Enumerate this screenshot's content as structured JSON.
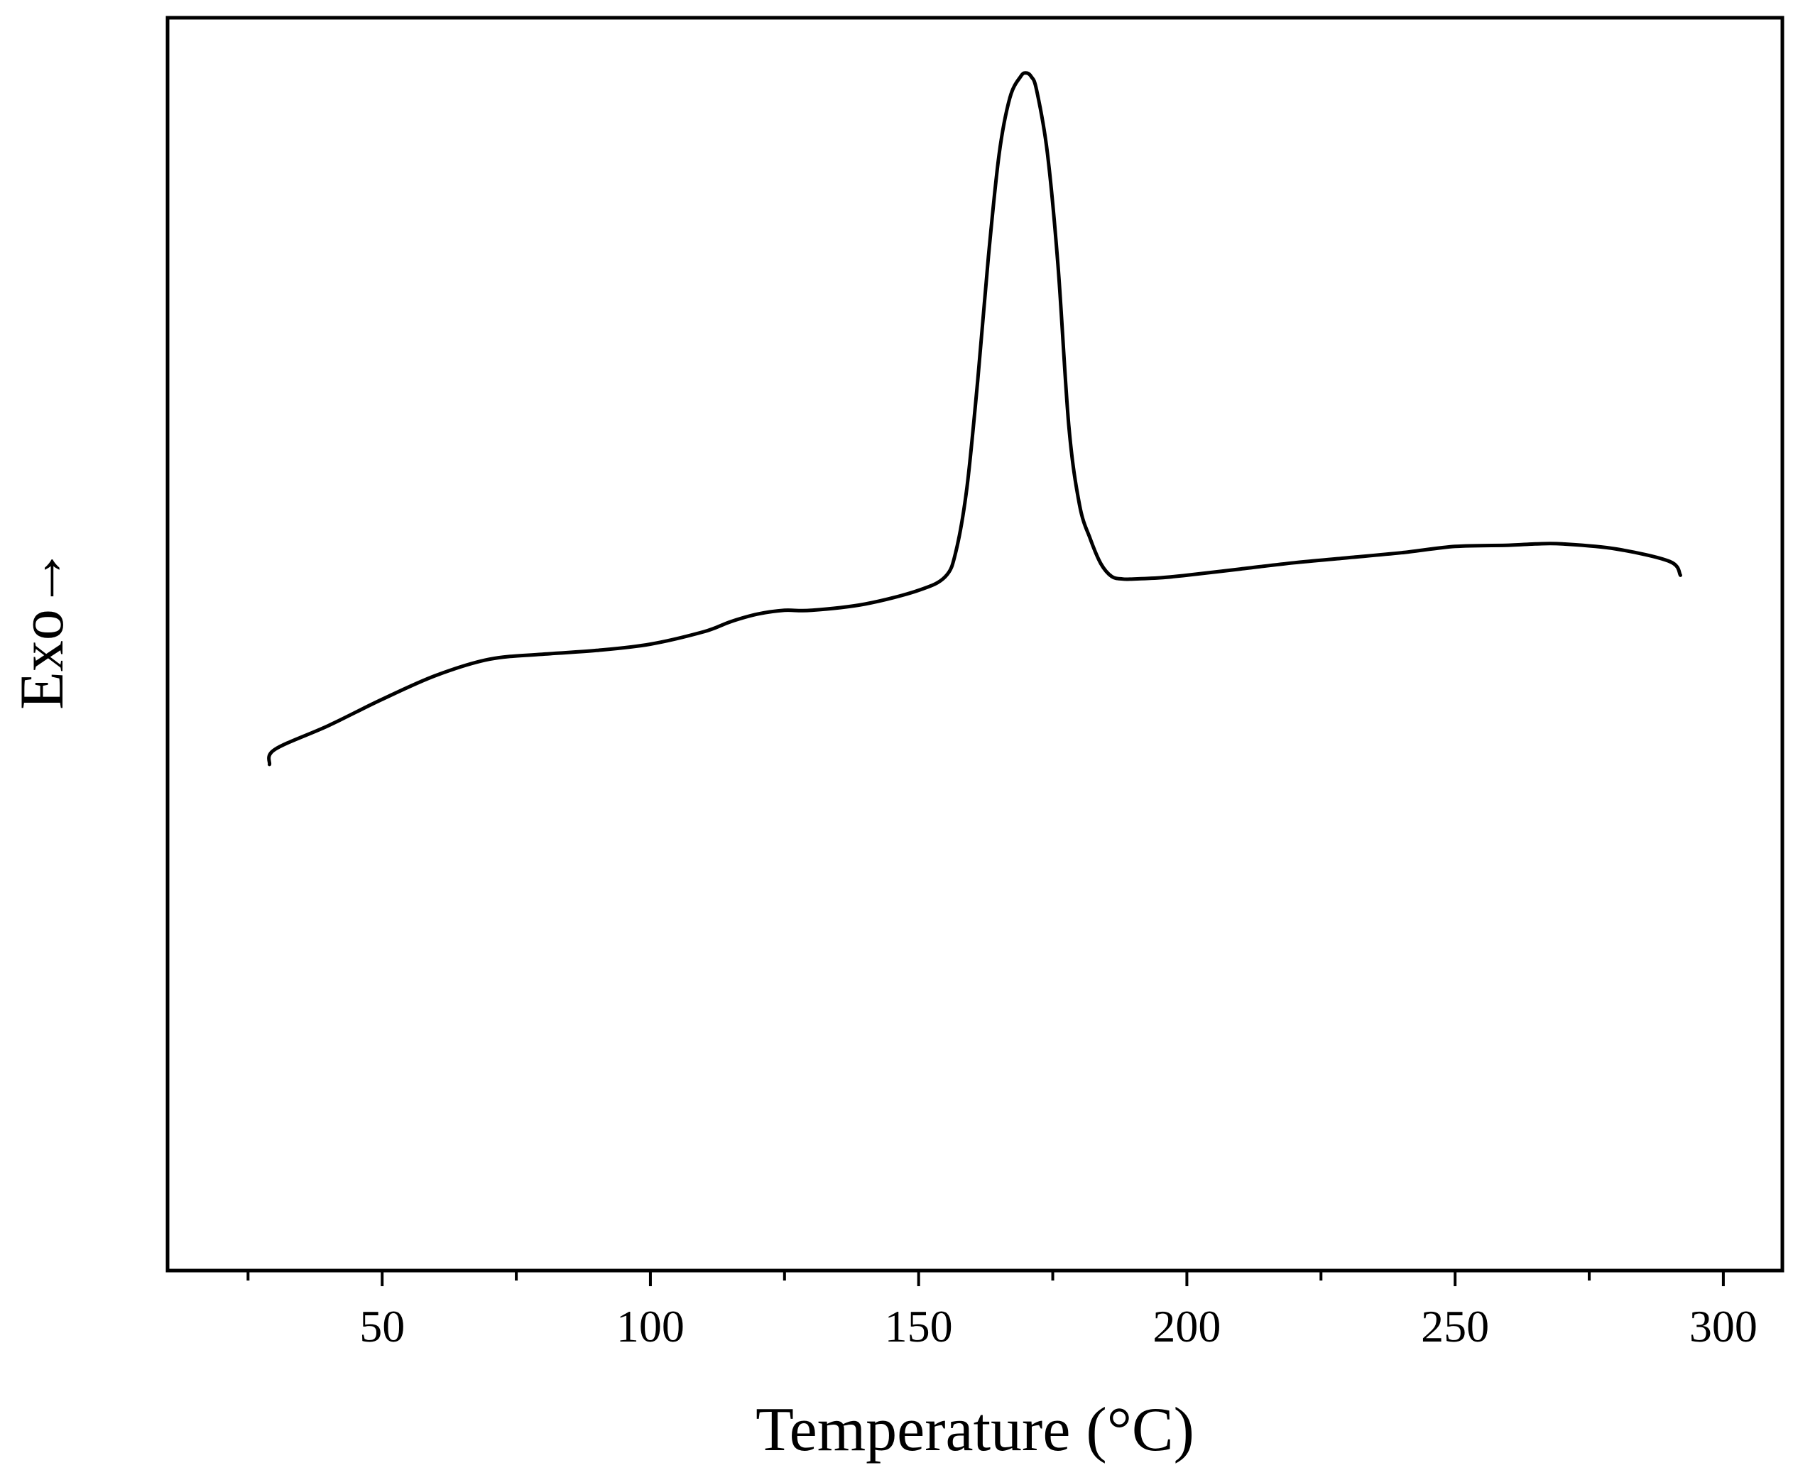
{
  "chart_data": {
    "type": "line",
    "title": "",
    "xlabel": "Temperature (°C)",
    "ylabel": "Exo→",
    "xlim": [
      10,
      311
    ],
    "ylim": [
      0,
      100
    ],
    "x_ticks_major": [
      50,
      100,
      150,
      200,
      250,
      300
    ],
    "x_tick_labels": [
      "50",
      "100",
      "150",
      "200",
      "250",
      "300"
    ],
    "x_ticks_minor": [
      25,
      75,
      125,
      175,
      225,
      275
    ],
    "y_tick_labels": false,
    "grid": false,
    "line_color": "#000000",
    "series": [
      {
        "x": [
          29,
          30,
          40,
          50,
          60,
          70,
          80,
          90,
          100,
          110,
          115,
          120,
          125,
          130,
          140,
          150,
          155,
          157,
          159,
          161,
          163,
          165,
          167,
          169,
          170,
          171,
          172,
          174,
          176,
          178,
          180,
          182,
          184,
          186,
          188,
          190,
          195,
          200,
          210,
          220,
          230,
          240,
          250,
          260,
          265,
          270,
          280,
          290,
          292
        ],
        "y": [
          40.4,
          41.6,
          43.5,
          45.6,
          47.5,
          48.8,
          49.2,
          49.5,
          50.0,
          51.0,
          51.8,
          52.4,
          52.7,
          52.7,
          53.2,
          54.3,
          55.4,
          57.5,
          62.5,
          71.0,
          80.9,
          89.1,
          93.6,
          95.3,
          95.6,
          95.3,
          94.2,
          89.2,
          80.1,
          67.4,
          61.1,
          58.4,
          56.4,
          55.4,
          55.2,
          55.2,
          55.3,
          55.5,
          56.0,
          56.5,
          56.9,
          57.3,
          57.8,
          57.9,
          58.0,
          58.0,
          57.6,
          56.6,
          55.5
        ]
      }
    ]
  }
}
